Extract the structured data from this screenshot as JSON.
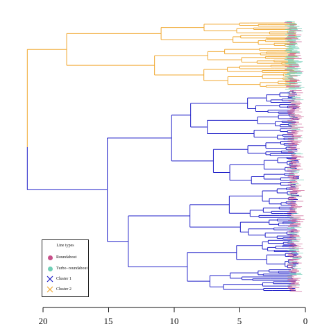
{
  "colors": {
    "cluster1": "#1f1fc8",
    "cluster2": "#f0a830",
    "roundabout": "#c8508a",
    "turbo_roundabout": "#6fcfb6"
  },
  "legend": {
    "title": "Line types",
    "items": [
      {
        "label": "Roundabout",
        "symbol": "circle",
        "color": "#c8508a"
      },
      {
        "label": "Turbo−roundabout",
        "symbol": "circle",
        "color": "#6fcfb6"
      },
      {
        "label": "Cluster 1",
        "symbol": "cross",
        "color": "#1f1fc8"
      },
      {
        "label": "Cluster 2",
        "symbol": "cross",
        "color": "#f0a830"
      }
    ]
  },
  "axis": {
    "ticks": [
      "20",
      "15",
      "10",
      "5",
      "0"
    ]
  }
}
